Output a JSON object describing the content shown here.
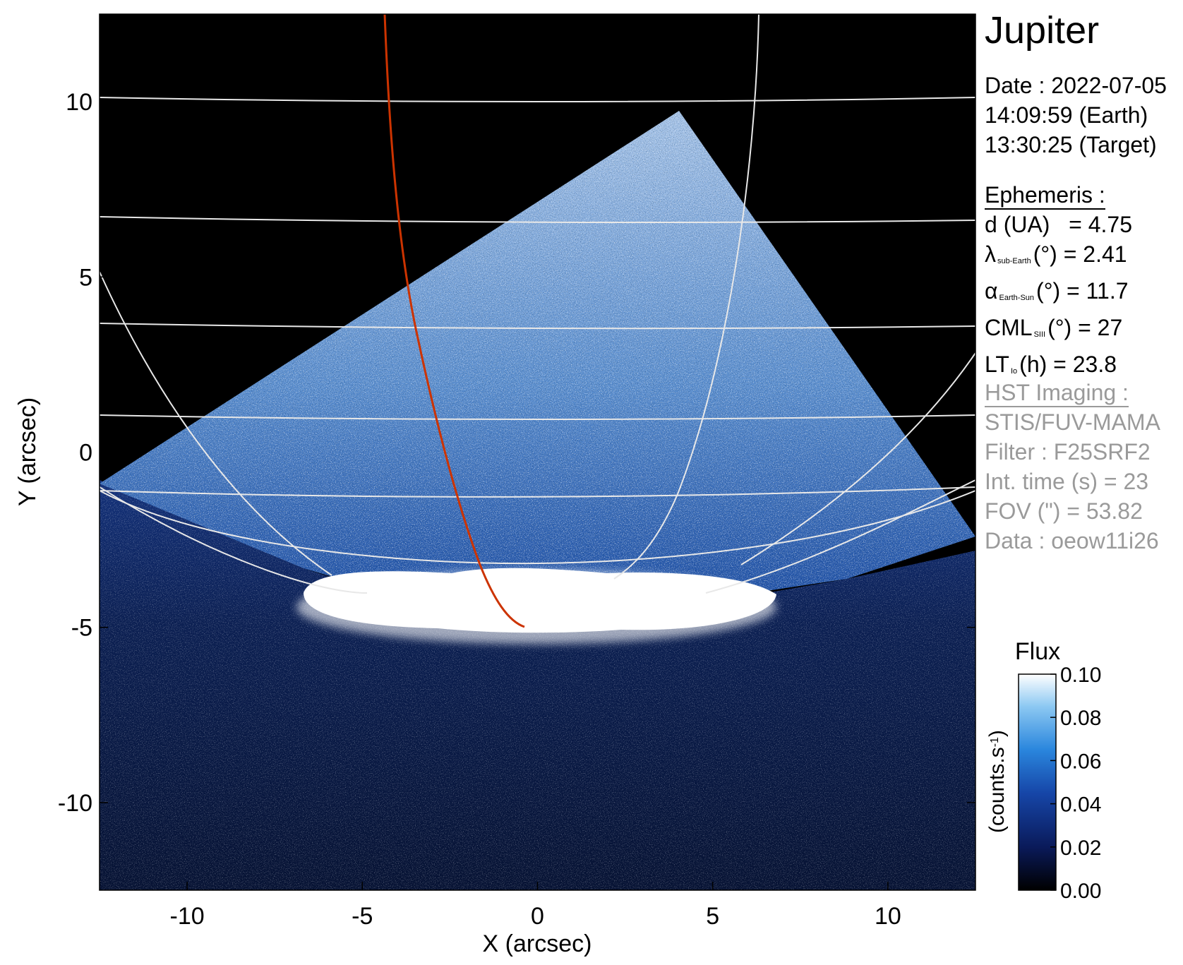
{
  "chart_data": {
    "type": "heatmap",
    "title": "Jupiter",
    "xlabel": "X (arcsec)",
    "ylabel": "Y (arcsec)",
    "xlim": [
      -12.5,
      12.5
    ],
    "ylim": [
      -12.5,
      12.5
    ],
    "xticks": [
      -10,
      -5,
      0,
      5,
      10
    ],
    "yticks": [
      10,
      5,
      0,
      -5,
      -10
    ],
    "xtick_labels": [
      "-10",
      "-5",
      "0",
      "5",
      "10"
    ],
    "ytick_labels": [
      "10",
      "5",
      "0",
      "-5",
      "-10"
    ],
    "grid": "latitude/longitude overlay",
    "colorbar": {
      "title": "Flux",
      "label": "(counts.s-1)",
      "ticks": [
        0.0,
        0.02,
        0.04,
        0.06,
        0.08,
        0.1
      ],
      "tick_labels": [
        "0.00",
        "0.02",
        "0.04",
        "0.06",
        "0.08",
        "0.10"
      ],
      "range": [
        0.0,
        0.1
      ],
      "colors": [
        "#000000",
        "#0a1a5a",
        "#1646a8",
        "#2a86dd",
        "#8cc8f2",
        "#ffffff"
      ]
    },
    "features": {
      "auroral_oval_color": "#ffffff",
      "footprint_track_color": "#cc3300",
      "grid_line_color": "#e8e8e8"
    }
  },
  "panel": {
    "date_line": "Date : 2022-07-05",
    "earth_time": "14:09:59 (Earth)",
    "target_time": "13:30:25 (Target)",
    "ephemeris_header": "Ephemeris :",
    "d_label": "d (UA)",
    "d_value": "= 4.75",
    "lat_symbol": "λ",
    "lat_sub": "sub-Earth",
    "lat_rest": "(°) = 2.41",
    "alpha_symbol": "α",
    "alpha_sub": "Earth-Sun",
    "alpha_rest": "(°) = 11.7",
    "cml_symbol": "CML",
    "cml_sub": "SIII",
    "cml_rest": "(°) = 27",
    "lt_symbol": "LT",
    "lt_sub": "Io",
    "lt_rest": "(h) = 23.8",
    "hst_header": "HST Imaging :",
    "instrument": "STIS/FUV-MAMA",
    "filter": "Filter : F25SRF2",
    "int_time": "Int. time (s) = 23",
    "fov": "FOV (\") = 53.82",
    "dataset": "Data : oeow11i26"
  }
}
